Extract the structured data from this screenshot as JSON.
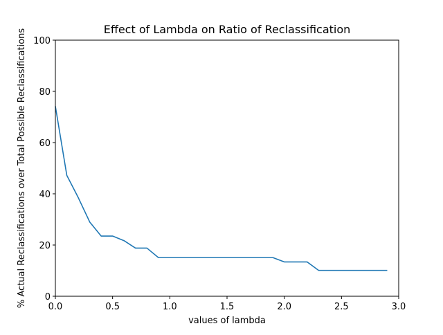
{
  "colors": {
    "line": "#1f77b4",
    "axes": "#000000",
    "background": "#ffffff"
  },
  "chart_data": {
    "type": "line",
    "title": "Effect of Lambda on Ratio of Reclassification",
    "xlabel": "values of lambda",
    "ylabel": "% Actual Reclassifications over Total Possible Reclassifications",
    "xlim": [
      0.0,
      3.0
    ],
    "ylim": [
      0,
      100
    ],
    "xticks": [
      0.0,
      0.5,
      1.0,
      1.5,
      2.0,
      2.5,
      3.0
    ],
    "xtick_labels": [
      "0.0",
      "0.5",
      "1.0",
      "1.5",
      "2.0",
      "2.5",
      "3.0"
    ],
    "yticks": [
      0,
      20,
      40,
      60,
      80,
      100
    ],
    "ytick_labels": [
      "0",
      "20",
      "40",
      "60",
      "80",
      "100"
    ],
    "grid": false,
    "legend": "none",
    "series": [
      {
        "x": [
          0.0,
          0.1,
          0.2,
          0.3,
          0.4,
          0.5,
          0.6,
          0.7,
          0.8,
          0.9,
          1.0,
          1.1,
          1.2,
          1.3,
          1.4,
          1.5,
          1.6,
          1.7,
          1.8,
          1.9,
          2.0,
          2.1,
          2.2,
          2.3,
          2.4,
          2.5,
          2.6,
          2.7,
          2.8,
          2.9
        ],
        "y": [
          74.2,
          47.2,
          38.5,
          29.0,
          23.5,
          23.5,
          21.7,
          18.8,
          18.8,
          15.1,
          15.1,
          15.1,
          15.1,
          15.1,
          15.1,
          15.1,
          15.1,
          15.1,
          15.1,
          15.1,
          13.4,
          13.4,
          13.4,
          10.1,
          10.1,
          10.1,
          10.1,
          10.1,
          10.1,
          10.1
        ]
      }
    ]
  }
}
